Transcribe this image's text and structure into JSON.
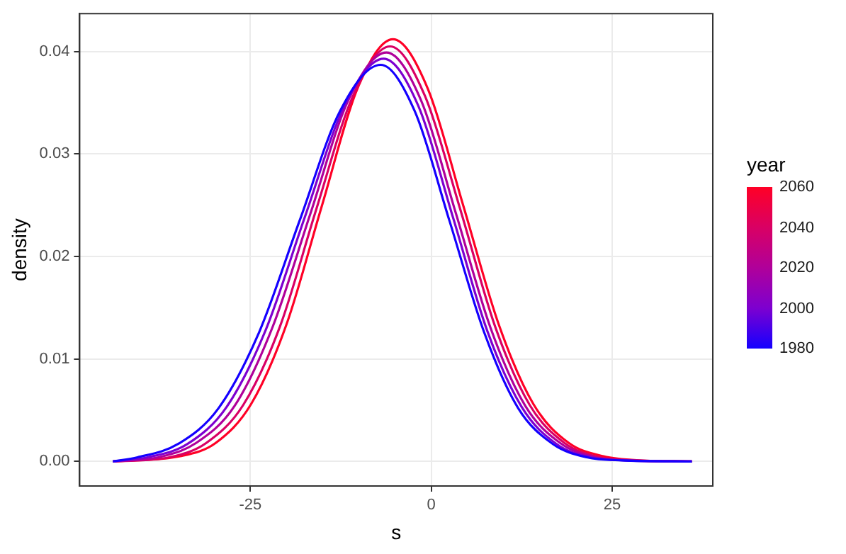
{
  "chart_data": {
    "type": "line",
    "xlabel": "s",
    "ylabel": "density",
    "legend_title": "year",
    "grid": true,
    "marker": "none",
    "line_style": "solid",
    "xlim": [
      -48.6,
      38.9
    ],
    "ylim": [
      -0.0024,
      0.0437
    ],
    "xticks": [
      -25,
      0,
      25
    ],
    "yticks": [
      {
        "value": 0,
        "label": "0.00"
      },
      {
        "value": 0.01,
        "label": "0.01"
      },
      {
        "value": 0.02,
        "label": "0.02"
      },
      {
        "value": 0.03,
        "label": "0.03"
      },
      {
        "value": 0.04,
        "label": "0.04"
      }
    ],
    "clim": [
      1980,
      2060
    ],
    "cticks": [
      1980,
      2000,
      2020,
      2040,
      2060
    ],
    "series": [
      {
        "color": "#1400ff",
        "x": [
          -44,
          -40.6,
          -35,
          -29.4,
          -23.8,
          -18.2,
          -12.6,
          -7,
          -2.3,
          2.5,
          7.3,
          12,
          16.8,
          21.5,
          26.3,
          36
        ],
        "values": [
          0,
          0.0004,
          0.0017,
          0.0052,
          0.0126,
          0.0235,
          0.0342,
          0.0387,
          0.0342,
          0.0235,
          0.0126,
          0.0052,
          0.0017,
          0.0004,
          0.0001,
          0
        ]
      },
      {
        "color": "#7d00d0",
        "x": [
          -44,
          -39.2,
          -33.7,
          -28.3,
          -22.9,
          -17.5,
          -12,
          -6.6,
          -1.8,
          3,
          7.7,
          12.5,
          17.3,
          22.1,
          26.8,
          36
        ],
        "values": [
          0,
          0.0004,
          0.0017,
          0.0053,
          0.0128,
          0.0238,
          0.0347,
          0.0393,
          0.0347,
          0.0238,
          0.0128,
          0.0053,
          0.0017,
          0.0004,
          0.0001,
          0
        ]
      },
      {
        "color": "#b0009a",
        "x": [
          -44,
          -37.7,
          -32.5,
          -27.2,
          -22,
          -16.7,
          -11.5,
          -6.2,
          -1.4,
          3.4,
          8.2,
          13,
          17.8,
          22.6,
          27.4,
          36
        ],
        "values": [
          0,
          0.0004,
          0.0018,
          0.0054,
          0.013,
          0.0242,
          0.0352,
          0.0399,
          0.0352,
          0.0242,
          0.013,
          0.0054,
          0.0018,
          0.0004,
          0.0001,
          0
        ]
      },
      {
        "color": "#d90064",
        "x": [
          -44,
          -36.2,
          -31.1,
          -26,
          -20.9,
          -15.9,
          -10.8,
          -5.7,
          -0.9,
          4,
          8.8,
          13.6,
          18.4,
          23.3,
          28.1,
          36
        ],
        "values": [
          0,
          0.0004,
          0.0018,
          0.0055,
          0.0132,
          0.0246,
          0.0357,
          0.0405,
          0.0357,
          0.0246,
          0.0132,
          0.0055,
          0.0018,
          0.0004,
          0.0001,
          0
        ]
      },
      {
        "color": "#ff0026",
        "x": [
          -44,
          -34.7,
          -29.8,
          -24.9,
          -20,
          -15.1,
          -10.2,
          -5.3,
          -0.5,
          4.4,
          9.3,
          14.1,
          19,
          23.8,
          28.7,
          36
        ],
        "values": [
          0,
          0.0005,
          0.0018,
          0.0056,
          0.0134,
          0.025,
          0.0364,
          0.0412,
          0.0364,
          0.025,
          0.0134,
          0.0056,
          0.0018,
          0.0005,
          0.0001,
          0
        ]
      }
    ]
  }
}
